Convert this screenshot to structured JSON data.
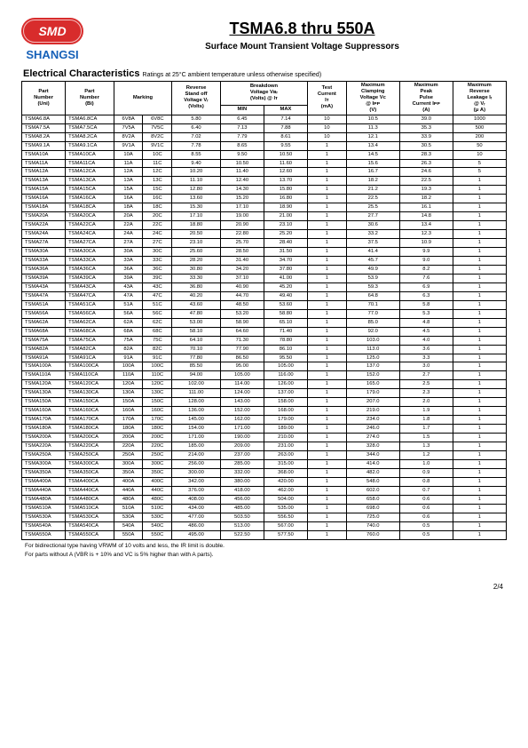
{
  "logo_text": "SMD",
  "brand": "SHANGSI",
  "title": "TSMA6.8 thru 550A",
  "subtitle": "Surface Mount Transient Voltage Suppressors",
  "section": "Electrical Characteristics",
  "section_note": "Ratings at 25°C ambient temperature unless otherwise specified)",
  "columns": {
    "part_uni": "Part\nNumber\n(Uni)",
    "part_bi": "Part\nNumber\n(Bi)",
    "marking": "Marking",
    "vr": "Reverse\nStand off\nVoltage Vᵣ\n(Volts)",
    "breakdown": "Breakdown\nVoltage Vʙᵣ\n(Volts) @ Iᴛ",
    "min": "MIN",
    "max": "MAX",
    "it": "Test\nCurrent\nIᴛ\n(mA)",
    "vc": "Maximum\nClamping\nVoltage Vᴄ\n@ Iᴘᴘ\n(V)",
    "ipp": "Maximum\nPeak\nPulse\nCurrent Iᴘᴘ\n(A)",
    "ir": "Maximum\nReverse\nLeakage Iᵣ\n@ Vᵣ\n(μ A)"
  },
  "rows": [
    [
      "TSMA6.8A",
      "TSMA6.8CA",
      "6V8A",
      "6V8C",
      "5.80",
      "6.45",
      "7.14",
      "10",
      "10.5",
      "39.0",
      "1000"
    ],
    [
      "TSMA7.5A",
      "TSMA7.5CA",
      "7V5A",
      "7V5C",
      "6.40",
      "7.13",
      "7.88",
      "10",
      "11.3",
      "35.3",
      "500"
    ],
    [
      "TSMA8.2A",
      "TSMA8.2CA",
      "8V2A",
      "8V2C",
      "7.02",
      "7.79",
      "8.61",
      "10",
      "12.1",
      "33.9",
      "200"
    ],
    [
      "TSMA9.1A",
      "TSMA9.1CA",
      "9V1A",
      "9V1C",
      "7.78",
      "8.65",
      "9.55",
      "1",
      "13.4",
      "30.5",
      "50"
    ],
    [
      "TSMA10A",
      "TSMA10CA",
      "10A",
      "10C",
      "8.55",
      "9.50",
      "10.50",
      "1",
      "14.5",
      "28.3",
      "10"
    ],
    [
      "TSMA11A",
      "TSMA11CA",
      "11A",
      "11C",
      "9.40",
      "10.50",
      "11.60",
      "1",
      "15.6",
      "26.3",
      "5"
    ],
    [
      "TSMA12A",
      "TSMA12CA",
      "12A",
      "12C",
      "10.20",
      "11.40",
      "12.60",
      "1",
      "16.7",
      "24.6",
      "5"
    ],
    [
      "TSMA13A",
      "TSMA13CA",
      "13A",
      "13C",
      "11.10",
      "12.40",
      "13.70",
      "1",
      "18.2",
      "22.5",
      "1"
    ],
    [
      "TSMA15A",
      "TSMA15CA",
      "15A",
      "15C",
      "12.80",
      "14.30",
      "15.80",
      "1",
      "21.2",
      "19.3",
      "1"
    ],
    [
      "TSMA16A",
      "TSMA16CA",
      "16A",
      "16C",
      "13.60",
      "15.20",
      "16.80",
      "1",
      "22.5",
      "18.2",
      "1"
    ],
    [
      "TSMA18A",
      "TSMA18CA",
      "18A",
      "18C",
      "15.30",
      "17.10",
      "18.90",
      "1",
      "25.5",
      "16.1",
      "1"
    ],
    [
      "TSMA20A",
      "TSMA20CA",
      "20A",
      "20C",
      "17.10",
      "19.00",
      "21.00",
      "1",
      "27.7",
      "14.8",
      "1"
    ],
    [
      "TSMA22A",
      "TSMA22CA",
      "22A",
      "22C",
      "18.80",
      "20.90",
      "23.10",
      "1",
      "30.6",
      "13.4",
      "1"
    ],
    [
      "TSMA24A",
      "TSMA24CA",
      "24A",
      "24C",
      "20.50",
      "22.80",
      "25.20",
      "1",
      "33.2",
      "12.3",
      "1"
    ],
    [
      "TSMA27A",
      "TSMA27CA",
      "27A",
      "27C",
      "23.10",
      "25.70",
      "28.40",
      "1",
      "37.5",
      "10.9",
      "1"
    ],
    [
      "TSMA30A",
      "TSMA30CA",
      "30A",
      "30C",
      "25.60",
      "28.50",
      "31.50",
      "1",
      "41.4",
      "9.9",
      "1"
    ],
    [
      "TSMA33A",
      "TSMA33CA",
      "33A",
      "33C",
      "28.20",
      "31.40",
      "34.70",
      "1",
      "45.7",
      "9.0",
      "1"
    ],
    [
      "TSMA36A",
      "TSMA36CA",
      "36A",
      "36C",
      "30.80",
      "34.20",
      "37.80",
      "1",
      "49.9",
      "8.2",
      "1"
    ],
    [
      "TSMA39A",
      "TSMA39CA",
      "39A",
      "39C",
      "33.30",
      "37.10",
      "41.00",
      "1",
      "53.9",
      "7.6",
      "1"
    ],
    [
      "TSMA43A",
      "TSMA43CA",
      "43A",
      "43C",
      "36.80",
      "40.90",
      "45.20",
      "1",
      "59.3",
      "6.9",
      "1"
    ],
    [
      "TSMA47A",
      "TSMA47CA",
      "47A",
      "47C",
      "40.20",
      "44.70",
      "49.40",
      "1",
      "64.8",
      "6.3",
      "1"
    ],
    [
      "TSMA51A",
      "TSMA51CA",
      "51A",
      "51C",
      "43.60",
      "48.50",
      "53.60",
      "1",
      "70.1",
      "5.8",
      "1"
    ],
    [
      "TSMA56A",
      "TSMA56CA",
      "56A",
      "56C",
      "47.80",
      "53.20",
      "58.80",
      "1",
      "77.0",
      "5.3",
      "1"
    ],
    [
      "TSMA62A",
      "TSMA62CA",
      "62A",
      "62C",
      "53.00",
      "58.90",
      "65.10",
      "1",
      "85.0",
      "4.8",
      "1"
    ],
    [
      "TSMA68A",
      "TSMA68CA",
      "68A",
      "68C",
      "58.10",
      "64.60",
      "71.40",
      "1",
      "92.0",
      "4.5",
      "1"
    ],
    [
      "TSMA75A",
      "TSMA75CA",
      "75A",
      "75C",
      "64.10",
      "71.30",
      "78.80",
      "1",
      "103.0",
      "4.0",
      "1"
    ],
    [
      "TSMA82A",
      "TSMA82CA",
      "82A",
      "82C",
      "70.10",
      "77.90",
      "86.10",
      "1",
      "113.0",
      "3.6",
      "1"
    ],
    [
      "TSMA91A",
      "TSMA91CA",
      "91A",
      "91C",
      "77.80",
      "86.50",
      "95.50",
      "1",
      "125.0",
      "3.3",
      "1"
    ],
    [
      "TSMA100A",
      "TSMA100CA",
      "100A",
      "100C",
      "85.50",
      "95.00",
      "105.00",
      "1",
      "137.0",
      "3.0",
      "1"
    ],
    [
      "TSMA110A",
      "TSMA110CA",
      "110A",
      "110C",
      "94.00",
      "105.00",
      "116.00",
      "1",
      "152.0",
      "2.7",
      "1"
    ],
    [
      "TSMA120A",
      "TSMA120CA",
      "120A",
      "120C",
      "102.00",
      "114.00",
      "126.00",
      "1",
      "165.0",
      "2.5",
      "1"
    ],
    [
      "TSMA130A",
      "TSMA130CA",
      "130A",
      "130C",
      "111.00",
      "124.00",
      "137.00",
      "1",
      "179.0",
      "2.3",
      "1"
    ],
    [
      "TSMA150A",
      "TSMA150CA",
      "150A",
      "150C",
      "128.00",
      "143.00",
      "158.00",
      "1",
      "207.0",
      "2.0",
      "1"
    ],
    [
      "TSMA160A",
      "TSMA160CA",
      "160A",
      "160C",
      "136.00",
      "152.00",
      "168.00",
      "1",
      "219.0",
      "1.9",
      "1"
    ],
    [
      "TSMA170A",
      "TSMA170CA",
      "170A",
      "170C",
      "145.00",
      "162.00",
      "179.00",
      "1",
      "234.0",
      "1.8",
      "1"
    ],
    [
      "TSMA180A",
      "TSMA180CA",
      "180A",
      "180C",
      "154.00",
      "171.00",
      "189.00",
      "1",
      "246.0",
      "1.7",
      "1"
    ],
    [
      "TSMA200A",
      "TSMA200CA",
      "200A",
      "200C",
      "171.00",
      "190.00",
      "210.00",
      "1",
      "274.0",
      "1.5",
      "1"
    ],
    [
      "TSMA220A",
      "TSMA220CA",
      "220A",
      "220C",
      "185.00",
      "209.00",
      "231.00",
      "1",
      "328.0",
      "1.3",
      "1"
    ],
    [
      "TSMA250A",
      "TSMA250CA",
      "250A",
      "250C",
      "214.00",
      "237.00",
      "263.00",
      "1",
      "344.0",
      "1.2",
      "1"
    ],
    [
      "TSMA300A",
      "TSMA300CA",
      "300A",
      "300C",
      "256.00",
      "285.00",
      "315.00",
      "1",
      "414.0",
      "1.0",
      "1"
    ],
    [
      "TSMA350A",
      "TSMA350CA",
      "350A",
      "350C",
      "300.00",
      "332.00",
      "368.00",
      "1",
      "482.0",
      "0.9",
      "1"
    ],
    [
      "TSMA400A",
      "TSMA400CA",
      "400A",
      "400C",
      "342.00",
      "380.00",
      "420.00",
      "1",
      "548.0",
      "0.8",
      "1"
    ],
    [
      "TSMA440A",
      "TSMA440CA",
      "440A",
      "440C",
      "376.00",
      "418.00",
      "462.00",
      "1",
      "602.0",
      "0.7",
      "1"
    ],
    [
      "TSMA480A",
      "TSMA480CA",
      "480A",
      "480C",
      "408.00",
      "456.00",
      "504.00",
      "1",
      "658.0",
      "0.6",
      "1"
    ],
    [
      "TSMA510A",
      "TSMA510CA",
      "510A",
      "510C",
      "434.00",
      "485.00",
      "535.00",
      "1",
      "698.0",
      "0.6",
      "1"
    ],
    [
      "TSMA530A",
      "TSMA530CA",
      "530A",
      "530C",
      "477.00",
      "503.50",
      "556.50",
      "1",
      "725.0",
      "0.6",
      "1"
    ],
    [
      "TSMA540A",
      "TSMA540CA",
      "540A",
      "540C",
      "486.00",
      "513.00",
      "567.00",
      "1",
      "740.0",
      "0.5",
      "1"
    ],
    [
      "TSMA550A",
      "TSMA550CA",
      "550A",
      "550C",
      "495.00",
      "522.50",
      "577.50",
      "1",
      "760.0",
      "0.5",
      "1"
    ]
  ],
  "footnotes": [
    "For bidirectional type having VRWM of 10 volts and less, the IR limit is double.",
    "For parts without A (VBR is + 10% and VC is 5% higher than with A parts)."
  ],
  "page": "2/4"
}
